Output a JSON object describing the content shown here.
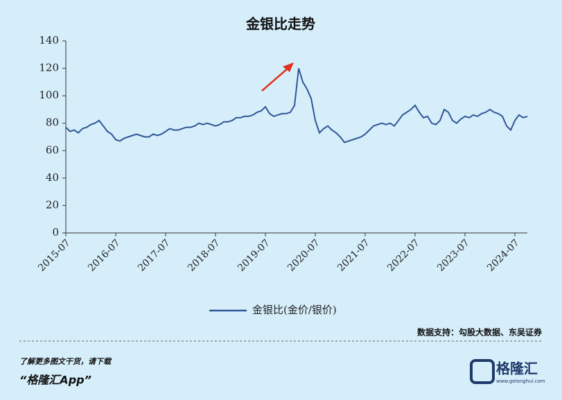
{
  "chart_data": {
    "type": "line",
    "title": "金银比走势",
    "x": [
      "2015-07",
      "2015-08",
      "2015-09",
      "2015-10",
      "2015-11",
      "2015-12",
      "2016-01",
      "2016-02",
      "2016-03",
      "2016-04",
      "2016-05",
      "2016-06",
      "2016-07",
      "2016-08",
      "2016-09",
      "2016-10",
      "2016-11",
      "2016-12",
      "2017-01",
      "2017-02",
      "2017-03",
      "2017-04",
      "2017-05",
      "2017-06",
      "2017-07",
      "2017-08",
      "2017-09",
      "2017-10",
      "2017-11",
      "2017-12",
      "2018-01",
      "2018-02",
      "2018-03",
      "2018-04",
      "2018-05",
      "2018-06",
      "2018-07",
      "2018-08",
      "2018-09",
      "2018-10",
      "2018-11",
      "2018-12",
      "2019-01",
      "2019-02",
      "2019-03",
      "2019-04",
      "2019-05",
      "2019-06",
      "2019-07",
      "2019-08",
      "2019-09",
      "2019-10",
      "2019-11",
      "2019-12",
      "2020-01",
      "2020-02",
      "2020-03",
      "2020-04",
      "2020-05",
      "2020-06",
      "2020-07",
      "2020-08",
      "2020-09",
      "2020-10",
      "2020-11",
      "2020-12",
      "2021-01",
      "2021-02",
      "2021-03",
      "2021-04",
      "2021-05",
      "2021-06",
      "2021-07",
      "2021-08",
      "2021-09",
      "2021-10",
      "2021-11",
      "2021-12",
      "2022-01",
      "2022-02",
      "2022-03",
      "2022-04",
      "2022-05",
      "2022-06",
      "2022-07",
      "2022-08",
      "2022-09",
      "2022-10",
      "2022-11",
      "2022-12",
      "2023-01",
      "2023-02",
      "2023-03",
      "2023-04",
      "2023-05",
      "2023-06",
      "2023-07",
      "2023-08",
      "2023-09",
      "2023-10",
      "2023-11",
      "2023-12",
      "2024-01",
      "2024-02",
      "2024-03",
      "2024-04",
      "2024-05",
      "2024-06",
      "2024-07",
      "2024-08",
      "2024-09",
      "2024-10"
    ],
    "series": [
      {
        "name": "金银比(金价/银价)",
        "color": "#2f5597",
        "values": [
          77,
          74,
          75,
          73,
          76,
          77,
          79,
          80,
          82,
          78,
          74,
          72,
          68,
          67,
          69,
          70,
          71,
          72,
          71,
          70,
          70,
          72,
          71,
          72,
          74,
          76,
          75,
          75,
          76,
          77,
          77,
          78,
          80,
          79,
          80,
          79,
          78,
          79,
          81,
          81,
          82,
          84,
          84,
          85,
          85,
          86,
          88,
          89,
          92,
          87,
          85,
          86,
          87,
          87,
          88,
          93,
          120,
          110,
          105,
          98,
          82,
          73,
          76,
          78,
          75,
          73,
          70,
          66,
          67,
          68,
          69,
          70,
          72,
          75,
          78,
          79,
          80,
          79,
          80,
          78,
          82,
          86,
          88,
          90,
          93,
          88,
          84,
          85,
          80,
          79,
          82,
          90,
          88,
          82,
          80,
          83,
          85,
          84,
          86,
          85,
          87,
          88,
          90,
          88,
          87,
          85,
          78,
          75,
          82,
          86,
          84,
          85
        ]
      }
    ],
    "xlim": [
      "2015-07",
      "2024-10"
    ],
    "xticks": [
      "2015-07",
      "2016-07",
      "2017-07",
      "2018-07",
      "2019-07",
      "2020-07",
      "2021-07",
      "2022-07",
      "2023-07",
      "2024-07"
    ],
    "ylim": [
      0,
      140
    ],
    "yticks": [
      0,
      20,
      40,
      60,
      80,
      100,
      120,
      140
    ],
    "source": "数据支持：勾股大数据、东吴证券",
    "footer_prompt": "了解更多图文干货，请下载",
    "footer_app": "“格隆汇App”",
    "logo_name": "格隆汇",
    "logo_url": "www.gelonghui.com"
  }
}
